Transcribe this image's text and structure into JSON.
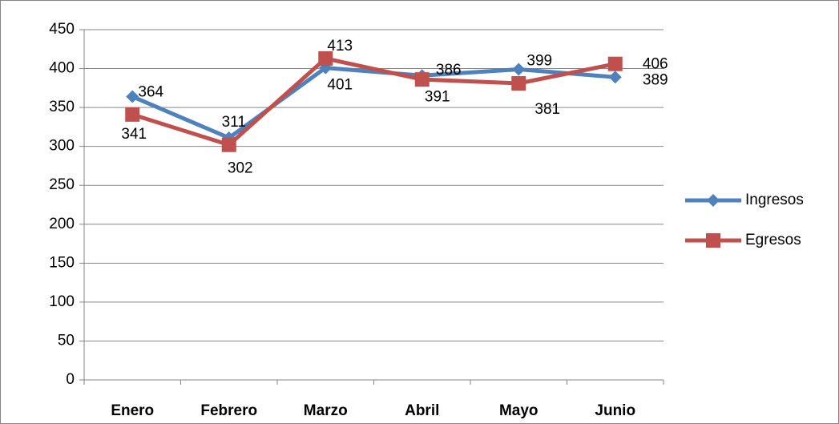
{
  "chart_data": {
    "type": "line",
    "categories": [
      "Enero",
      "Febrero",
      "Marzo",
      "Abril",
      "Mayo",
      "Junio"
    ],
    "series": [
      {
        "name": "Ingresos",
        "color": "#4f81bd",
        "marker": "diamond",
        "values": [
          364,
          311,
          401,
          391,
          399,
          389
        ]
      },
      {
        "name": "Egresos",
        "color": "#c0504d",
        "marker": "square",
        "values": [
          341,
          302,
          413,
          386,
          381,
          406
        ]
      }
    ],
    "ylim": [
      0,
      450
    ],
    "yticks": [
      0,
      50,
      100,
      150,
      200,
      250,
      300,
      350,
      400,
      450
    ],
    "grid": true,
    "legend": "right"
  }
}
